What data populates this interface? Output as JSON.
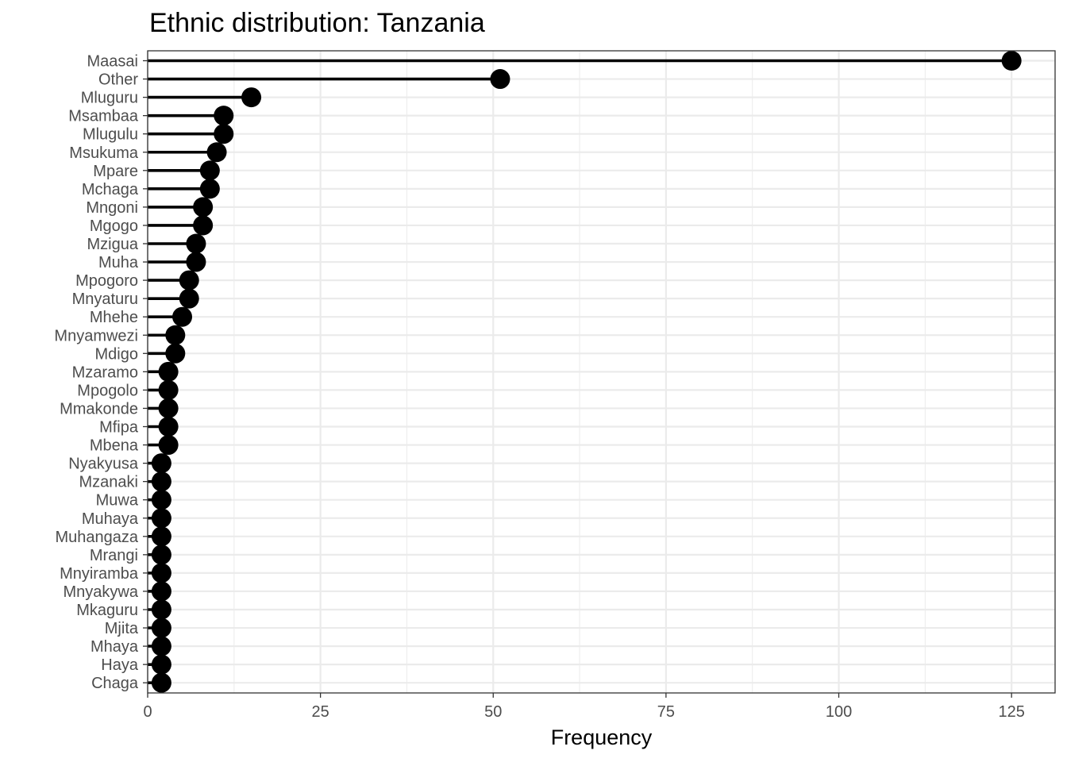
{
  "chart_data": {
    "type": "lollipop",
    "title": "Ethnic distribution: Tanzania",
    "xlabel": "Frequency",
    "ylabel": "",
    "xlim": [
      0,
      131.3
    ],
    "xticks": [
      0,
      25,
      50,
      75,
      100,
      125
    ],
    "grid": true,
    "legend": "none",
    "categories": [
      "Maasai",
      "Other",
      "Mluguru",
      "Msambaa",
      "Mlugulu",
      "Msukuma",
      "Mpare",
      "Mchaga",
      "Mngoni",
      "Mgogo",
      "Mzigua",
      "Muha",
      "Mpogoro",
      "Mnyaturu",
      "Mhehe",
      "Mnyamwezi",
      "Mdigo",
      "Mzaramo",
      "Mpogolo",
      "Mmakonde",
      "Mfipa",
      "Mbena",
      "Nyakyusa",
      "Mzanaki",
      "Muwa",
      "Muhaya",
      "Muhangaza",
      "Mrangi",
      "Mnyiramba",
      "Mnyakywa",
      "Mkaguru",
      "Mjita",
      "Mhaya",
      "Haya",
      "Chaga"
    ],
    "values": [
      125,
      51,
      15,
      11,
      11,
      10,
      9,
      9,
      8,
      8,
      7,
      7,
      6,
      6,
      5,
      4,
      4,
      3,
      3,
      3,
      3,
      3,
      2,
      2,
      2,
      2,
      2,
      2,
      2,
      2,
      2,
      2,
      2,
      2,
      2
    ],
    "colors": {
      "mark": "#000000",
      "grid": "#ebebeb",
      "panel_border": "#333333",
      "tick_label": "#4d4d4d"
    }
  }
}
